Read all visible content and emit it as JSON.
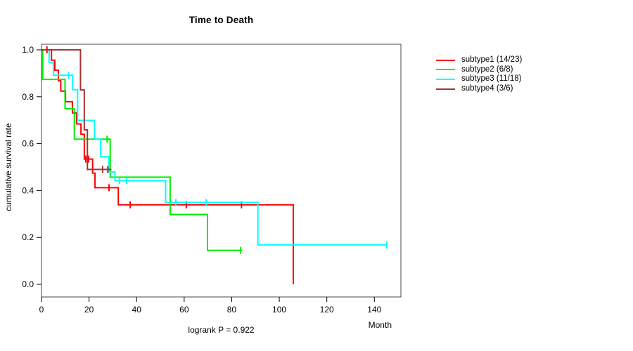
{
  "chart_data": {
    "type": "line",
    "variant": "kaplan-meier-step",
    "title": "Time to Death",
    "xlabel": "Month",
    "ylabel": "cumulative survival rate",
    "annotation": "logrank P = 0.922",
    "xlim": [
      0,
      151
    ],
    "ylim": [
      0,
      1
    ],
    "grid": false,
    "legend_position": "right-outside",
    "xticks": [
      0,
      20,
      40,
      60,
      80,
      100,
      120,
      140
    ],
    "xtick_labels": [
      "0",
      "20",
      "40",
      "60",
      "80",
      "100",
      "120",
      "140"
    ],
    "yticks": [
      0.0,
      0.2,
      0.4,
      0.6,
      0.8,
      1.0
    ],
    "ytick_labels": [
      "0.0",
      "0.2",
      "0.4",
      "0.6",
      "0.8",
      "1.0"
    ],
    "series": [
      {
        "name": "subtype1 (14/23)",
        "color": "#ff0000",
        "steps": [
          [
            0,
            1
          ],
          [
            4.2,
            0.956
          ],
          [
            5.6,
            0.913
          ],
          [
            7.1,
            0.868
          ],
          [
            8.1,
            0.824
          ],
          [
            10.1,
            0.779
          ],
          [
            13.0,
            0.731
          ],
          [
            14.8,
            0.684
          ],
          [
            16.6,
            0.64
          ],
          [
            18.0,
            0.534
          ],
          [
            21.5,
            0.474
          ],
          [
            22.5,
            0.412
          ],
          [
            32.3,
            0.339
          ],
          [
            105.9,
            0
          ]
        ],
        "censor_ticks": [
          [
            2.3,
            1
          ],
          [
            18.6,
            0.534
          ],
          [
            19.8,
            0.534
          ],
          [
            28.4,
            0.412
          ],
          [
            37.3,
            0.339
          ],
          [
            60.9,
            0.339
          ],
          [
            84.1,
            0.339
          ]
        ]
      },
      {
        "name": "subtype2 (6/8)",
        "color": "#00ee00",
        "steps": [
          [
            0,
            1
          ],
          [
            0.5,
            0.874
          ],
          [
            9.9,
            0.749
          ],
          [
            13.8,
            0.619
          ],
          [
            28.9,
            0.457
          ],
          [
            54.1,
            0.298
          ],
          [
            69.8,
            0.145
          ],
          [
            84.3,
            0.145
          ]
        ],
        "censor_ticks": [
          [
            27.6,
            0.619
          ],
          [
            83.7,
            0.145
          ]
        ]
      },
      {
        "name": "subtype3 (11/18)",
        "color": "#00ffff",
        "steps": [
          [
            0,
            1
          ],
          [
            3.2,
            0.947
          ],
          [
            5.0,
            0.892
          ],
          [
            13.1,
            0.83
          ],
          [
            15.2,
            0.699
          ],
          [
            22.3,
            0.619
          ],
          [
            24.9,
            0.544
          ],
          [
            28.4,
            0.479
          ],
          [
            30.9,
            0.442
          ],
          [
            52.2,
            0.349
          ],
          [
            91.0,
            0.168
          ],
          [
            145.2,
            0.168
          ]
        ],
        "censor_ticks": [
          [
            11.4,
            0.892
          ],
          [
            32.8,
            0.442
          ],
          [
            35.8,
            0.442
          ],
          [
            56.5,
            0.349
          ],
          [
            69.3,
            0.349
          ],
          [
            145.2,
            0.168
          ]
        ]
      },
      {
        "name": "subtype4 (3/6)",
        "color": "#a93232",
        "steps": [
          [
            0,
            1
          ],
          [
            16.4,
            0.829
          ],
          [
            18.0,
            0.659
          ],
          [
            19.3,
            0.49
          ],
          [
            29.4,
            0.49
          ]
        ],
        "censor_ticks": [
          [
            25.7,
            0.49
          ],
          [
            27.9,
            0.49
          ]
        ]
      }
    ]
  }
}
